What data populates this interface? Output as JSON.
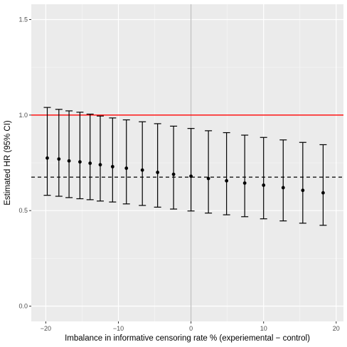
{
  "chart_data": {
    "type": "scatter",
    "title": "",
    "xlabel": "Imbalance in informative censoring rate % (experiemental − control)",
    "ylabel": "Estimated HR (95% CI)",
    "xlim": [
      -22,
      21
    ],
    "ylim": [
      -0.08,
      1.58
    ],
    "x_ticks": [
      -20,
      -10,
      0,
      10,
      20
    ],
    "x_tick_labels": [
      "−20",
      "−10",
      "0",
      "10",
      "20"
    ],
    "y_ticks": [
      0.0,
      0.5,
      1.0,
      1.5
    ],
    "y_tick_labels": [
      "0.0",
      "0.5",
      "1.0",
      "1.5"
    ],
    "grid": true,
    "reference_lines": {
      "null_hr": {
        "y": 1.0,
        "color": "#ff0000",
        "style": "solid"
      },
      "pooled_estimate": {
        "y": 0.675,
        "color": "#000000",
        "style": "dashed"
      },
      "zero_imbalance": {
        "x": 0,
        "color": "#bebebe",
        "style": "solid"
      }
    },
    "points": [
      {
        "x": -19.8,
        "y": 0.775,
        "lo": 0.58,
        "hi": 1.04
      },
      {
        "x": -18.2,
        "y": 0.77,
        "lo": 0.575,
        "hi": 1.03
      },
      {
        "x": -16.8,
        "y": 0.76,
        "lo": 0.568,
        "hi": 1.022
      },
      {
        "x": -15.3,
        "y": 0.755,
        "lo": 0.562,
        "hi": 1.015
      },
      {
        "x": -13.9,
        "y": 0.748,
        "lo": 0.557,
        "hi": 1.005
      },
      {
        "x": -12.5,
        "y": 0.74,
        "lo": 0.55,
        "hi": 0.995
      },
      {
        "x": -10.8,
        "y": 0.73,
        "lo": 0.545,
        "hi": 0.985
      },
      {
        "x": -8.9,
        "y": 0.722,
        "lo": 0.535,
        "hi": 0.975
      },
      {
        "x": -6.7,
        "y": 0.712,
        "lo": 0.527,
        "hi": 0.965
      },
      {
        "x": -4.6,
        "y": 0.7,
        "lo": 0.518,
        "hi": 0.955
      },
      {
        "x": -2.4,
        "y": 0.69,
        "lo": 0.508,
        "hi": 0.942
      },
      {
        "x": 0.0,
        "y": 0.68,
        "lo": 0.498,
        "hi": 0.93
      },
      {
        "x": 2.4,
        "y": 0.668,
        "lo": 0.487,
        "hi": 0.918
      },
      {
        "x": 4.9,
        "y": 0.656,
        "lo": 0.478,
        "hi": 0.908
      },
      {
        "x": 7.4,
        "y": 0.644,
        "lo": 0.468,
        "hi": 0.895
      },
      {
        "x": 10.0,
        "y": 0.633,
        "lo": 0.457,
        "hi": 0.883
      },
      {
        "x": 12.7,
        "y": 0.62,
        "lo": 0.446,
        "hi": 0.87
      },
      {
        "x": 15.4,
        "y": 0.606,
        "lo": 0.434,
        "hi": 0.857
      },
      {
        "x": 18.2,
        "y": 0.593,
        "lo": 0.423,
        "hi": 0.845
      }
    ]
  }
}
